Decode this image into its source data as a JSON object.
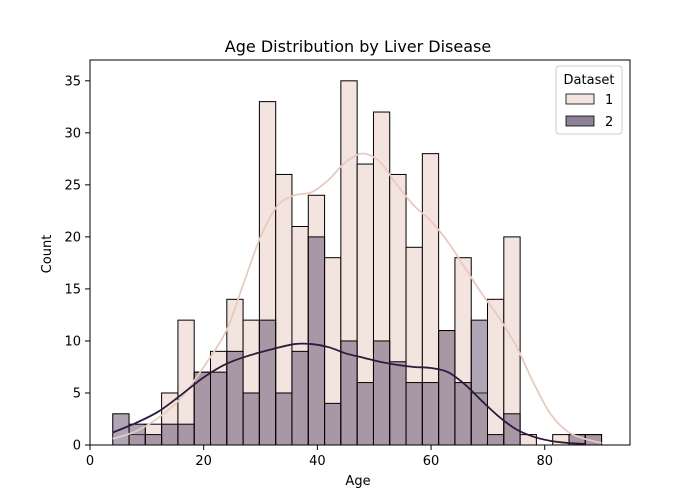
{
  "chart_data": {
    "type": "bar",
    "subtype": "histogram-with-kde",
    "title": "Age Distribution by Liver Disease",
    "xlabel": "Age",
    "ylabel": "Count",
    "xlim": [
      0,
      95
    ],
    "ylim": [
      0,
      37
    ],
    "xticks": [
      0,
      20,
      40,
      60,
      80
    ],
    "yticks": [
      0,
      5,
      10,
      15,
      20,
      25,
      30,
      35
    ],
    "grid": false,
    "legend": {
      "title": "Dataset",
      "placement": "top-right"
    },
    "bin_edges": [
      4,
      6.87,
      9.73,
      12.6,
      15.47,
      18.33,
      21.2,
      24.07,
      26.93,
      29.8,
      32.67,
      35.53,
      38.4,
      41.27,
      44.13,
      47,
      49.87,
      52.73,
      55.6,
      58.47,
      61.33,
      64.2,
      67.07,
      69.93,
      72.8,
      75.67,
      78.53,
      81.4,
      84.27,
      87.13,
      90
    ],
    "series": [
      {
        "name": "1",
        "color": "#f3e4df",
        "line_color": "#e8cbc0",
        "values": [
          0,
          1,
          2,
          5,
          12,
          7,
          9,
          14,
          12,
          33,
          26,
          21,
          24,
          18,
          35,
          27,
          32,
          26,
          19,
          28,
          11,
          18,
          5,
          14,
          20,
          1,
          0,
          1,
          1,
          1
        ],
        "kde": [
          [
            4,
            0.6
          ],
          [
            8,
            1.3
          ],
          [
            12,
            2.6
          ],
          [
            16,
            4.5
          ],
          [
            20,
            7.5
          ],
          [
            24,
            11
          ],
          [
            27,
            15.5
          ],
          [
            30,
            20
          ],
          [
            33,
            23
          ],
          [
            36,
            24
          ],
          [
            39,
            24.3
          ],
          [
            42,
            25.5
          ],
          [
            45,
            27.2
          ],
          [
            48,
            28
          ],
          [
            51,
            27.2
          ],
          [
            54,
            25
          ],
          [
            57,
            23
          ],
          [
            60,
            21.5
          ],
          [
            63,
            19.5
          ],
          [
            66,
            17
          ],
          [
            69,
            14.5
          ],
          [
            72,
            12.2
          ],
          [
            75,
            9.5
          ],
          [
            78,
            6
          ],
          [
            81,
            3
          ],
          [
            84,
            1.3
          ],
          [
            87,
            0.6
          ],
          [
            90,
            0.2
          ]
        ]
      },
      {
        "name": "2",
        "color": "#5d4c6b",
        "line_color": "#2d1b3d",
        "values": [
          3,
          2,
          1,
          2,
          2,
          7,
          7,
          9,
          5,
          12,
          5,
          9,
          20,
          4,
          10,
          6,
          10,
          8,
          6,
          6,
          11,
          6,
          12,
          1,
          3,
          0,
          0,
          0,
          1,
          1
        ],
        "kde": [
          [
            4,
            1.2
          ],
          [
            8,
            2.1
          ],
          [
            12,
            3.2
          ],
          [
            16,
            4.8
          ],
          [
            20,
            6.5
          ],
          [
            24,
            7.8
          ],
          [
            28,
            8.6
          ],
          [
            32,
            9.2
          ],
          [
            36,
            9.7
          ],
          [
            39,
            9.7
          ],
          [
            42,
            9.4
          ],
          [
            45,
            8.8
          ],
          [
            48,
            8.4
          ],
          [
            51,
            8
          ],
          [
            54,
            7.7
          ],
          [
            57,
            7.5
          ],
          [
            60,
            7.4
          ],
          [
            63,
            7
          ],
          [
            66,
            5.8
          ],
          [
            69,
            4.2
          ],
          [
            72,
            2.7
          ],
          [
            75,
            1.5
          ],
          [
            78,
            0.8
          ],
          [
            81,
            0.4
          ],
          [
            84,
            0.2
          ],
          [
            87,
            0.1
          ]
        ]
      }
    ]
  }
}
